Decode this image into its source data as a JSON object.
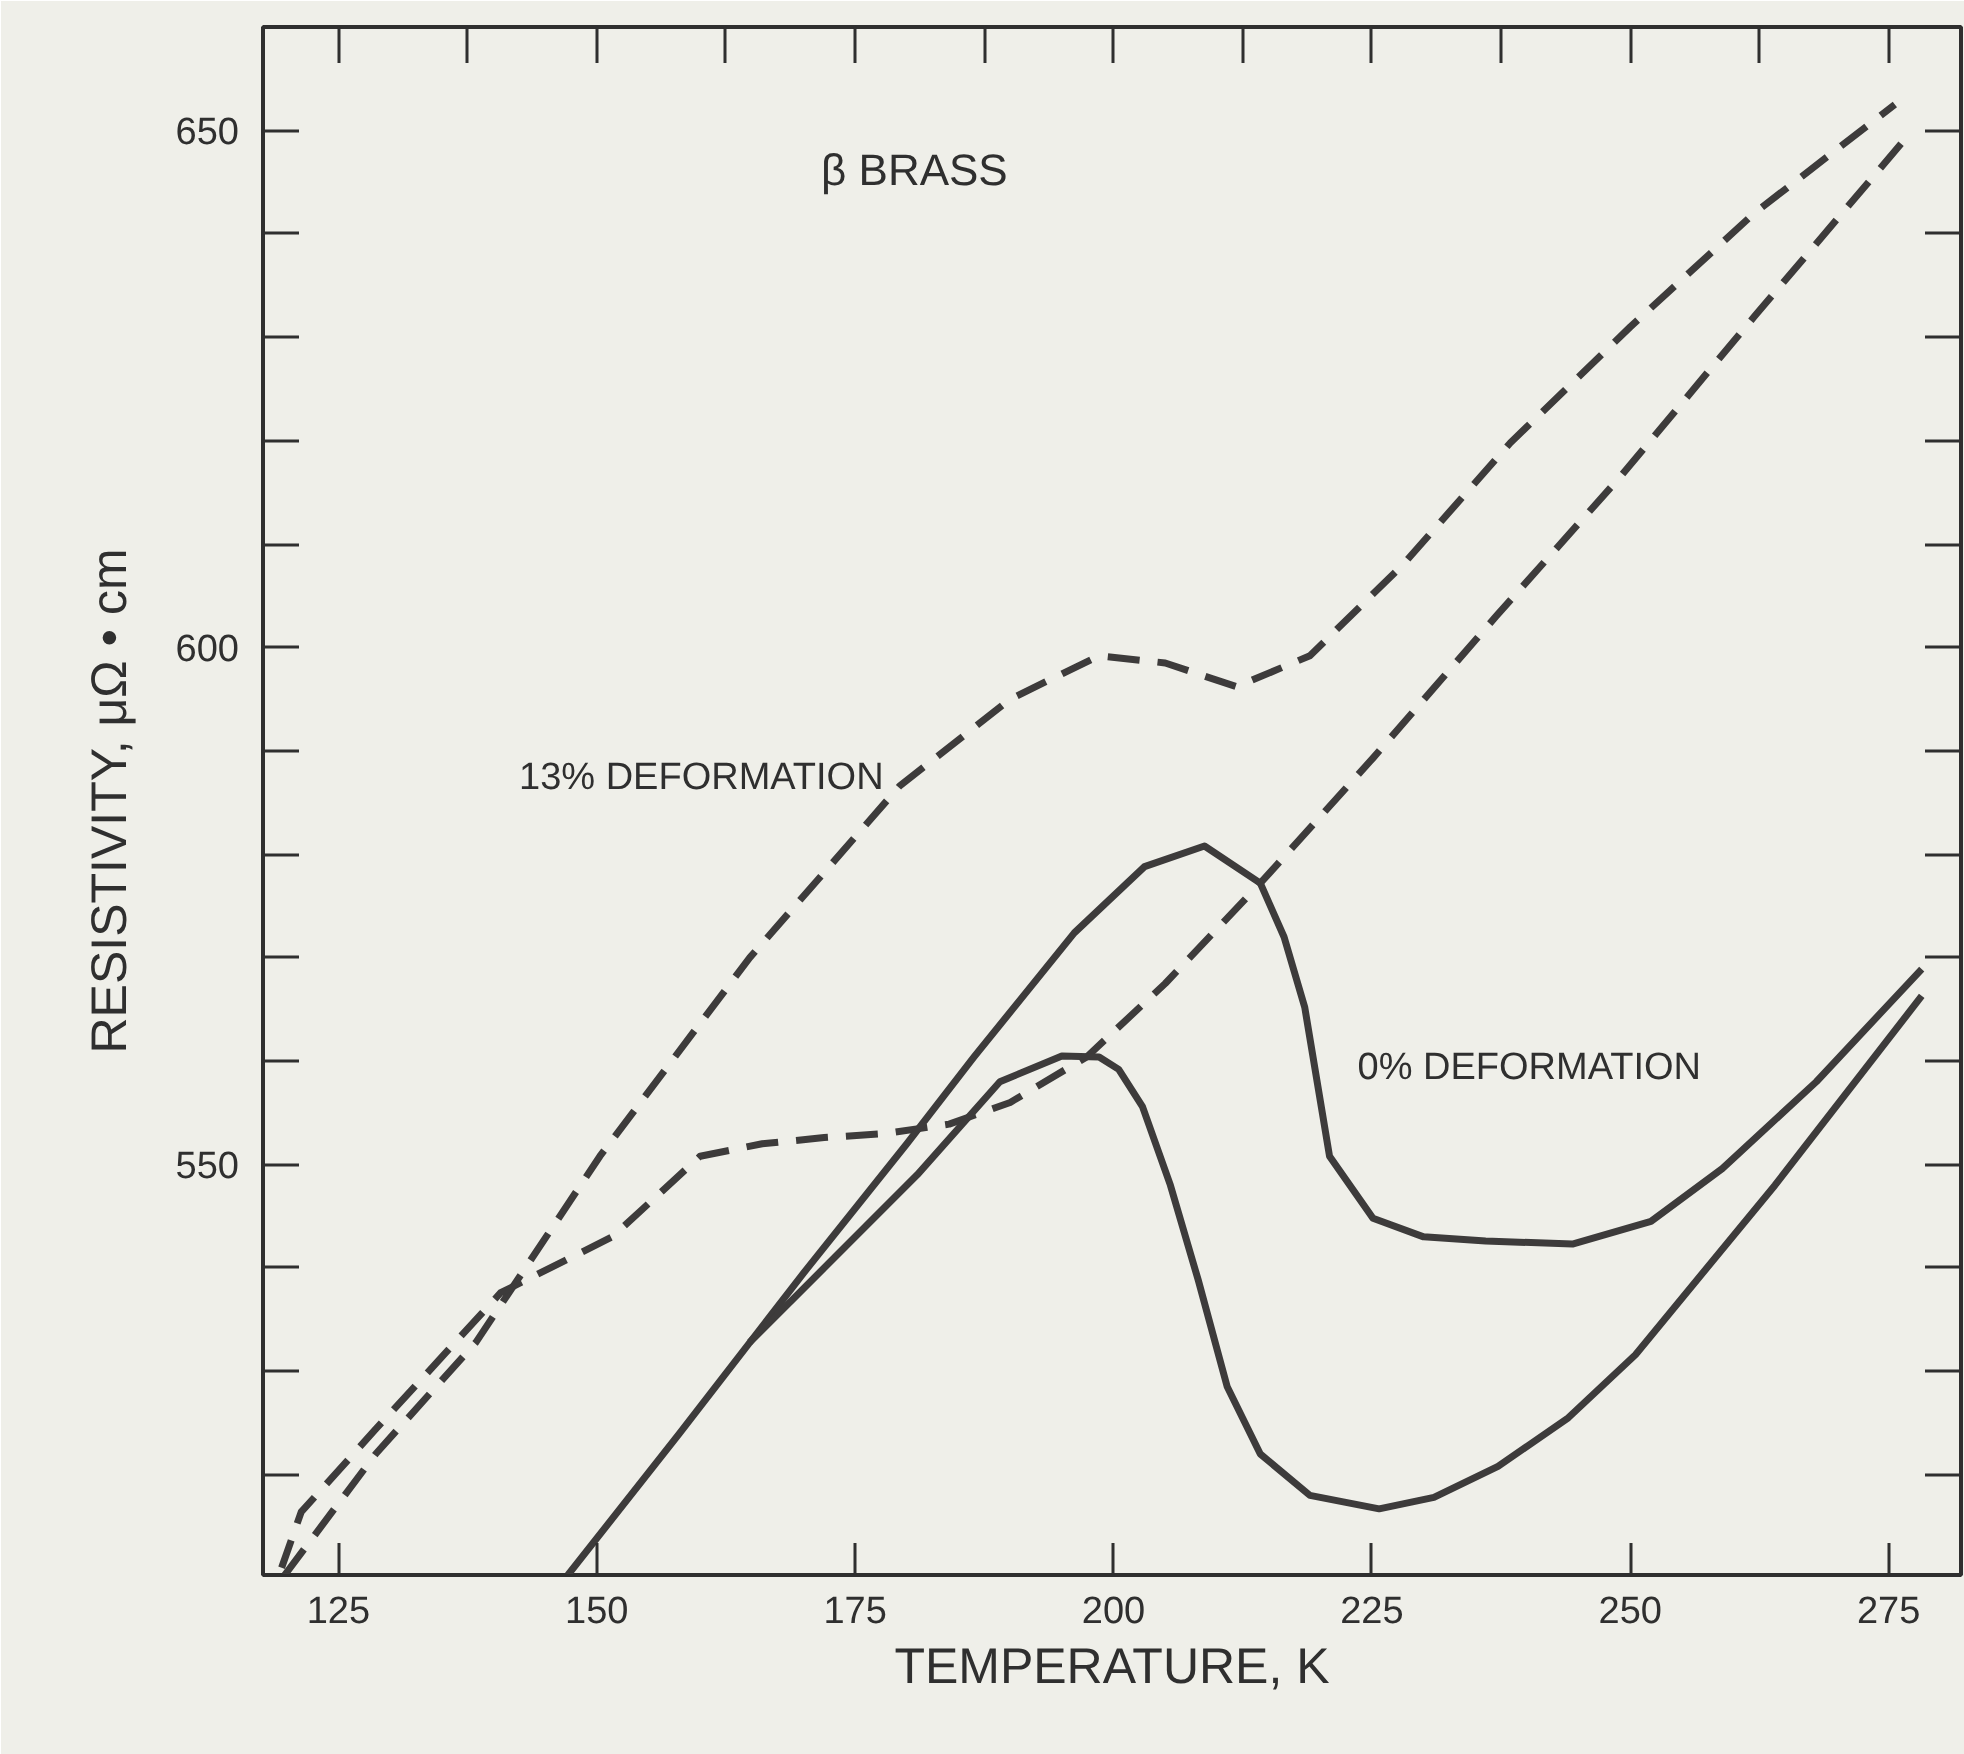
{
  "chart_data": {
    "type": "line",
    "xlabel": "TEMPERATURE, K",
    "ylabel": "RESISTIVITY, μΩ • cm",
    "annotations": [
      "β BRASS"
    ],
    "xlim": [
      117.7,
      282
    ],
    "ylim": [
      510.3,
      660
    ],
    "xticks": [
      125,
      150,
      175,
      200,
      225,
      250,
      275
    ],
    "yticks": [
      550,
      600,
      650
    ],
    "grid": false,
    "marker": "none",
    "series": [
      {
        "name": "13% DEFORMATION",
        "color": "#3d3b3b",
        "line_style": "dashed",
        "x": [
          119.8,
          128.6,
          138.3,
          150.3,
          164.8,
          179.3,
          190,
          198.6,
          205,
          211.9,
          219,
          228,
          238.4,
          250,
          262,
          275.6
        ],
        "values": [
          510.3,
          522,
          532.8,
          550.8,
          570,
          586.6,
          595,
          599.2,
          598.5,
          596.2,
          599.2,
          608,
          619.8,
          631,
          642,
          652.5
        ]
      },
      {
        "color": "#3d3b3b",
        "line_style": "dashed",
        "x": [
          276.2,
          262,
          249.2,
          237,
          225.1,
          214.2,
          205,
          197.4,
          190,
          184.1,
          178,
          172,
          166,
          160,
          151.5,
          140.7,
          128.6,
          121.4,
          119.5
        ],
        "values": [
          648.7,
          632,
          616.7,
          603,
          589.3,
          577.2,
          567.5,
          560.4,
          556,
          553.9,
          553,
          552.6,
          552,
          550.8,
          543,
          537.6,
          524.4,
          516.4,
          511
        ]
      },
      {
        "name": "0% DEFORMATION",
        "color": "#3d3b3b",
        "line_style": "solid",
        "x": [
          147.2,
          158,
          170,
          180,
          186.5,
          196.2,
          203,
          208.8,
          214.2,
          216.5,
          218.5,
          220.9,
          225.1,
          230,
          236,
          244.4,
          252,
          258.9,
          268,
          278.2
        ],
        "values": [
          510.3,
          524,
          539.5,
          552,
          560.4,
          572.4,
          578.8,
          580.8,
          577.2,
          572,
          565.2,
          550.8,
          544.8,
          543,
          542.6,
          542.3,
          544.5,
          549.6,
          558,
          568.9
        ]
      },
      {
        "color": "#3d3b3b",
        "line_style": "solid",
        "x": [
          278.2,
          264,
          250.5,
          244,
          237.2,
          231,
          225.7,
          219,
          214.2,
          211,
          208.2,
          205.5,
          202.8,
          200.5,
          198.6,
          195,
          189,
          181,
          173,
          164.8
        ],
        "values": [
          566.3,
          548,
          531.6,
          525.5,
          520.8,
          517.8,
          516.7,
          518,
          522,
          528.5,
          538.8,
          548,
          555.6,
          559.2,
          560.4,
          560.5,
          558,
          549,
          541,
          532.8
        ]
      }
    ]
  }
}
